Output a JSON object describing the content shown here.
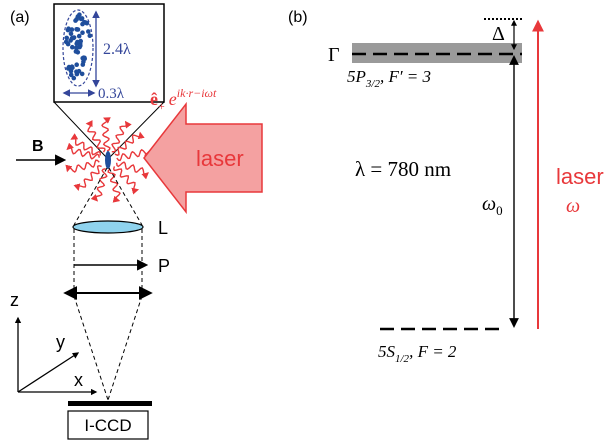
{
  "panel_a": {
    "label": "(a)",
    "inset": {
      "height_label": "2.4λ",
      "width_label": "0.3λ"
    },
    "polarization_label": "ê₊ e^{ik·r−iωt}",
    "polarization": {
      "base": "ê",
      "sub": "+",
      "e": "e",
      "exp": "ik·r−iωt"
    },
    "b_field_label": "B",
    "laser_label": "laser",
    "lens_label": "L",
    "polarizer_label": "P",
    "axes": {
      "z": "z",
      "y": "y",
      "x": "x"
    },
    "camera_label": "I-CCD"
  },
  "panel_b": {
    "label": "(b)",
    "gamma_label": "Γ",
    "delta_label": "Δ",
    "upper_state": {
      "text": "5P3/2, F′ = 3",
      "main": "5P",
      "sub": "3/2",
      "rest": ", F′ = 3"
    },
    "lower_state": {
      "text": "5S1/2, F = 2",
      "main": "5S",
      "sub": "1/2",
      "rest": ", F = 2"
    },
    "wavelength_label": "λ = 780 nm",
    "omega0_label": "ω0",
    "omega0": {
      "main": "ω",
      "sub": "0"
    },
    "laser_label": "laser",
    "omega_label": "ω"
  },
  "colors": {
    "laser_red": "#e8383b",
    "laser_fill": "#f4a1a1",
    "atom_blue": "#1f4e9c",
    "label_blue": "#34469a",
    "lens_fill": "#8fd3ee",
    "linewidth_gray": "#9a9a9a"
  }
}
